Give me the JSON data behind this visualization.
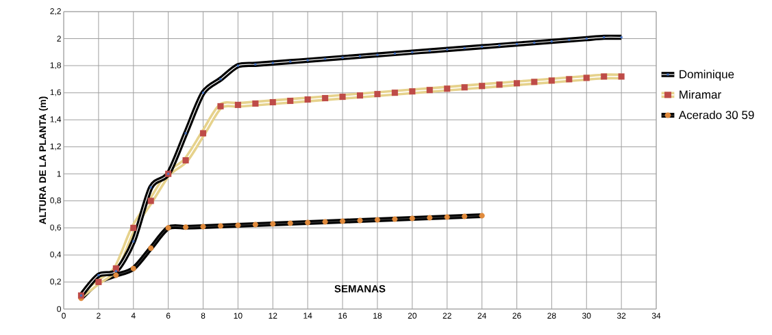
{
  "chart_data": {
    "type": "line",
    "xlabel": "SEMANAS",
    "ylabel": "ALTURA DE LA PLANTA (m)",
    "xlim": [
      0,
      34
    ],
    "xticks": [
      0,
      2,
      4,
      6,
      8,
      10,
      12,
      14,
      16,
      18,
      20,
      22,
      24,
      26,
      28,
      30,
      32,
      34
    ],
    "ylim": [
      0,
      2.2
    ],
    "yticks": [
      0,
      {
        "value": 0.2,
        "label": "0,2"
      },
      {
        "value": 0.4,
        "label": "0,4"
      },
      {
        "value": 0.6,
        "label": "0,6"
      },
      {
        "value": 0.8,
        "label": "0,8"
      },
      1,
      {
        "value": 1.2,
        "label": "1,2"
      },
      {
        "value": 1.4,
        "label": "1,4"
      },
      {
        "value": 1.6,
        "label": "1,6"
      },
      {
        "value": 1.8,
        "label": "1,8"
      },
      2,
      {
        "value": 2.2,
        "label": "2,2"
      }
    ],
    "grid": true,
    "legend": "right",
    "line_style": "solid",
    "x": [
      1,
      2,
      3,
      4,
      5,
      6,
      7,
      8,
      9,
      10,
      11,
      12,
      13,
      14,
      15,
      16,
      17,
      18,
      19,
      20,
      21,
      22,
      23,
      24,
      25,
      26,
      27,
      28,
      29,
      30,
      31,
      32
    ],
    "series": [
      {
        "name": "Dominique",
        "color": "#4472c4",
        "marker": "square",
        "values": [
          0.1,
          0.25,
          0.28,
          0.5,
          0.9,
          1.0,
          1.3,
          1.6,
          1.7,
          1.8,
          1.81,
          1.82,
          1.83,
          1.84,
          1.85,
          1.86,
          1.87,
          1.88,
          1.89,
          1.9,
          1.91,
          1.92,
          1.93,
          1.94,
          1.95,
          1.96,
          1.97,
          1.98,
          1.99,
          2.0,
          2.01,
          2.01
        ]
      },
      {
        "name": "Miramar",
        "color": "#be4b48",
        "marker": "square",
        "values": [
          0.1,
          0.2,
          0.3,
          0.6,
          0.8,
          1.0,
          1.1,
          1.3,
          1.5,
          1.51,
          1.52,
          1.53,
          1.54,
          1.55,
          1.56,
          1.57,
          1.58,
          1.59,
          1.6,
          1.61,
          1.62,
          1.63,
          1.64,
          1.65,
          1.66,
          1.67,
          1.68,
          1.69,
          1.7,
          1.71,
          1.72,
          1.72
        ]
      },
      {
        "name": "Acerado  30 59",
        "color": "#e08a3c",
        "marker": "circle",
        "x": [
          1,
          2,
          3,
          4,
          5,
          6,
          7,
          8,
          9,
          10,
          11,
          12,
          13,
          14,
          15,
          16,
          17,
          18,
          19,
          20,
          21,
          22,
          23,
          24
        ],
        "values": [
          0.08,
          0.2,
          0.25,
          0.3,
          0.45,
          0.6,
          0.605,
          0.61,
          0.615,
          0.62,
          0.625,
          0.63,
          0.635,
          0.64,
          0.645,
          0.65,
          0.655,
          0.66,
          0.665,
          0.67,
          0.675,
          0.68,
          0.685,
          0.69
        ]
      }
    ]
  }
}
